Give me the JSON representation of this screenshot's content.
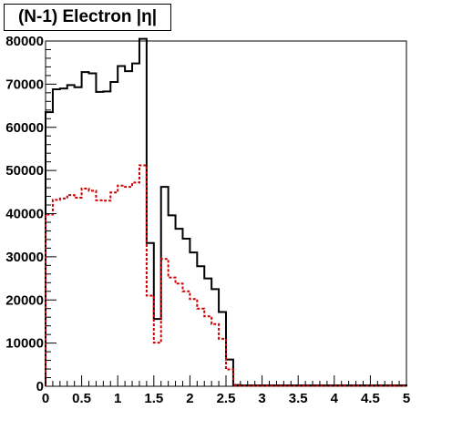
{
  "title": "(N-1) Electron |η|",
  "chart_data": {
    "type": "line",
    "title": "(N-1) Electron |η|",
    "xlabel": "",
    "ylabel": "",
    "xlim": [
      0,
      5
    ],
    "ylim": [
      0,
      80000
    ],
    "grid": false,
    "legend": "none",
    "bin_width": 0.1,
    "x_ticks": [
      "0",
      "0.5",
      "1",
      "1.5",
      "2",
      "2.5",
      "3",
      "3.5",
      "4",
      "4.5",
      "5"
    ],
    "y_ticks": [
      "0",
      "10000",
      "20000",
      "30000",
      "40000",
      "50000",
      "60000",
      "70000",
      "80000"
    ],
    "series": [
      {
        "color": "#000000",
        "style": "solid",
        "bin_edges_start": 0,
        "values": [
          63500,
          68800,
          69000,
          69800,
          69300,
          72800,
          72500,
          68200,
          68300,
          70500,
          74200,
          73000,
          74800,
          80500,
          33200,
          15600,
          46200,
          39600,
          36500,
          34200,
          31000,
          27800,
          25000,
          22500,
          17200,
          6200,
          300,
          200,
          200,
          200,
          200,
          200,
          200,
          200,
          200,
          200,
          200,
          200,
          200,
          200,
          200,
          200,
          200,
          200,
          200,
          200,
          200,
          200,
          200,
          200
        ]
      },
      {
        "color": "#cc0000",
        "style": "dashed",
        "bin_edges_start": 0,
        "values": [
          39800,
          43200,
          43500,
          44300,
          43700,
          45800,
          45300,
          43100,
          43000,
          44900,
          46500,
          46200,
          47200,
          51200,
          21000,
          10100,
          29500,
          25200,
          23800,
          22000,
          20200,
          18000,
          16200,
          14400,
          11000,
          3900,
          150,
          100,
          100,
          100,
          100,
          100,
          100,
          100,
          100,
          100,
          100,
          100,
          100,
          100,
          100,
          100,
          100,
          100,
          100,
          100,
          100,
          100,
          100,
          100
        ]
      }
    ]
  }
}
